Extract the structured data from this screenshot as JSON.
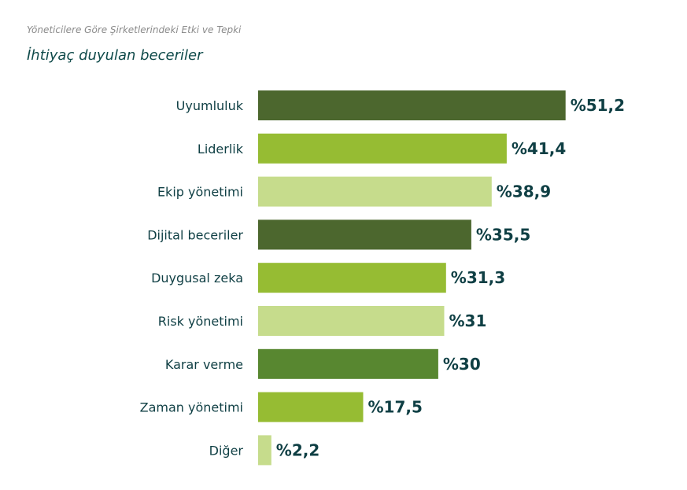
{
  "header": {
    "supertitle": "Yöneticilere Göre Şirketlerindeki Etki ve Tepki",
    "title": "İhtiyaç duyulan beceriler"
  },
  "chart_data": {
    "type": "bar",
    "orientation": "horizontal",
    "title": "",
    "xlabel": "",
    "ylabel": "",
    "value_prefix": "%",
    "grid": false,
    "legend": "none",
    "xlim": [
      0,
      60
    ],
    "categories": [
      "Uyumluluk",
      "Liderlik",
      "Ekip yönetimi",
      "Dijital beceriler",
      "Duygusal zeka",
      "Risk yönetimi",
      "Karar verme",
      "Zaman yönetimi",
      "Diğer"
    ],
    "values": [
      51.2,
      41.4,
      38.9,
      35.5,
      31.3,
      31,
      30,
      17.5,
      2.2
    ],
    "value_labels": [
      "%51,2",
      "%41,4",
      "%38,9",
      "%35,5",
      "%31,3",
      "%31",
      "%30",
      "%17,5",
      "%2,2"
    ],
    "colors": [
      "#4c672e",
      "#96bc33",
      "#c6dc8c",
      "#4c672e",
      "#96bc33",
      "#c6dc8c",
      "#588730",
      "#96bc33",
      "#c6dc8c"
    ]
  }
}
